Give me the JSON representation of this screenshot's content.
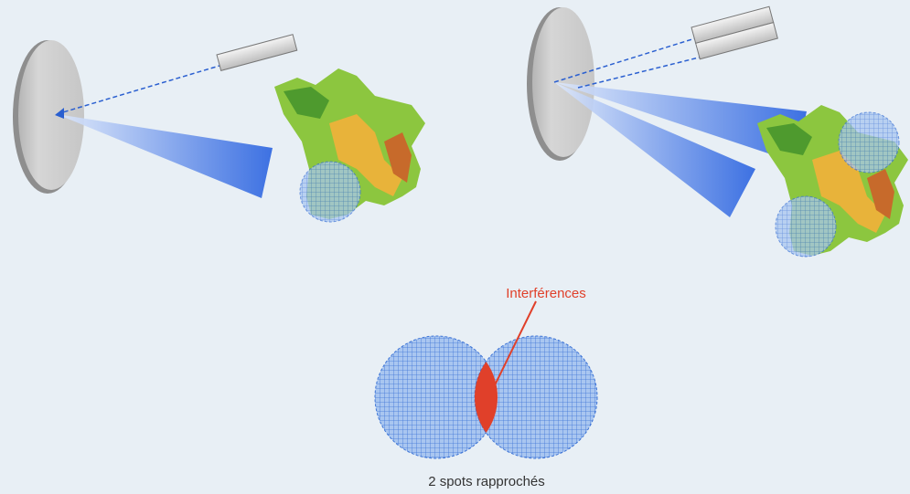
{
  "labels": {
    "interference": "Interférences",
    "caption": "2 spots rapprochés"
  }
}
